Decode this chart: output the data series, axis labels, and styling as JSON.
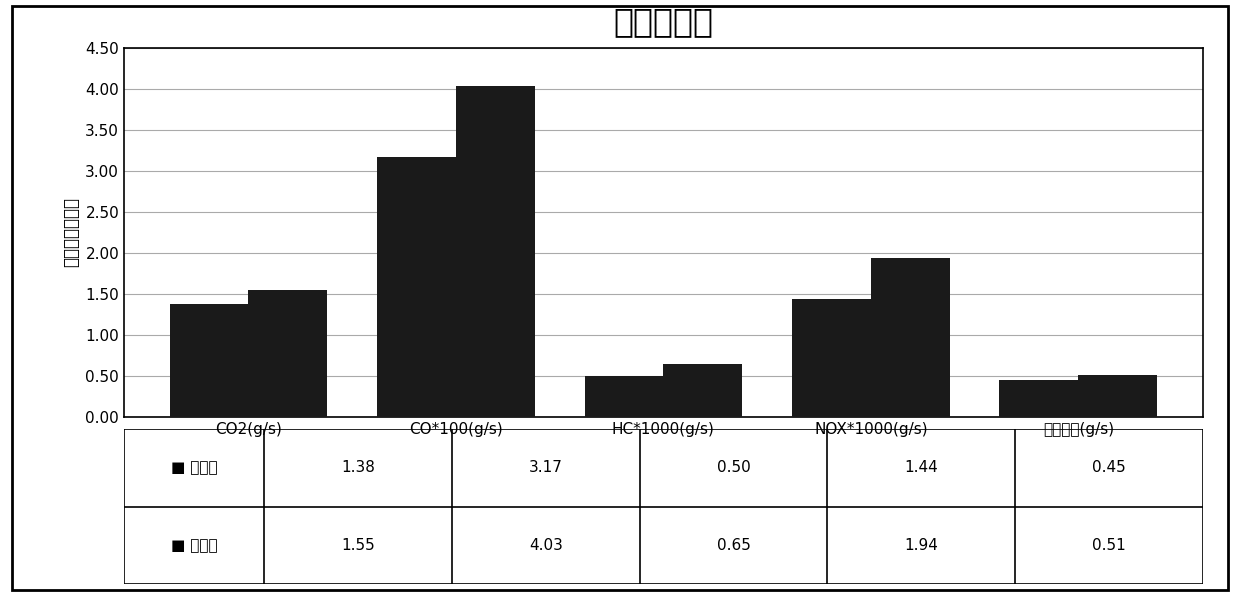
{
  "title": "小汽车比较",
  "ylabel": "排放率及油耗率",
  "categories": [
    "CO2(g/s)",
    "CO*100(g/s)",
    "HC*1000(g/s)",
    "NOX*1000(g/s)",
    "油耗因子(g/s)"
  ],
  "series1_label": "港湾式",
  "series2_label": "直线式",
  "series1_values": [
    1.38,
    3.17,
    0.5,
    1.44,
    0.45
  ],
  "series2_values": [
    1.55,
    4.03,
    0.65,
    1.94,
    0.51
  ],
  "bar_color": "#1a1a1a",
  "ylim": [
    0,
    4.5
  ],
  "yticks": [
    0.0,
    0.5,
    1.0,
    1.5,
    2.0,
    2.5,
    3.0,
    3.5,
    4.0,
    4.5
  ],
  "background_color": "#ffffff",
  "title_fontsize": 24,
  "axis_label_fontsize": 12,
  "tick_fontsize": 11,
  "table_fontsize": 11,
  "xlabel_fontsize": 11
}
